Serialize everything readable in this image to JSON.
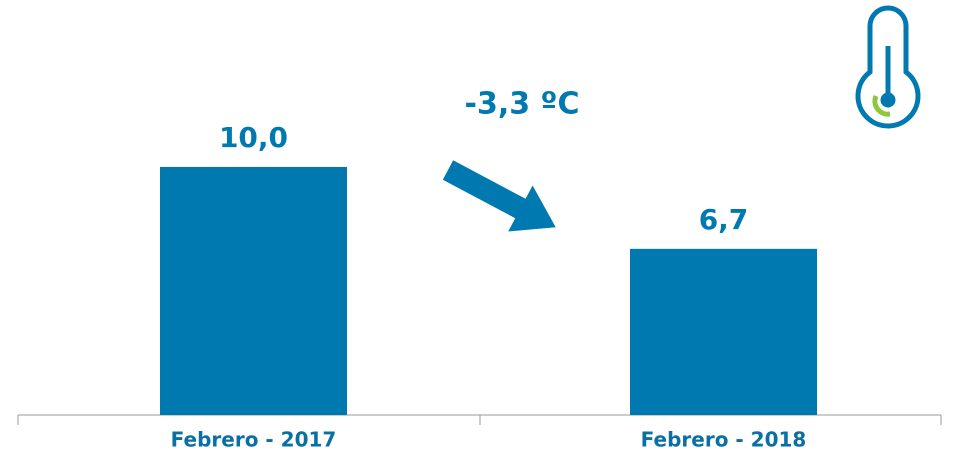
{
  "chart_data": {
    "type": "bar",
    "categories": [
      "Febrero - 2017",
      "Febrero - 2018"
    ],
    "values": [
      10.0,
      6.7
    ],
    "value_labels": [
      "10,0",
      "6,7"
    ],
    "color": "#0079b0",
    "annotation": "-3,3 ºC"
  }
}
